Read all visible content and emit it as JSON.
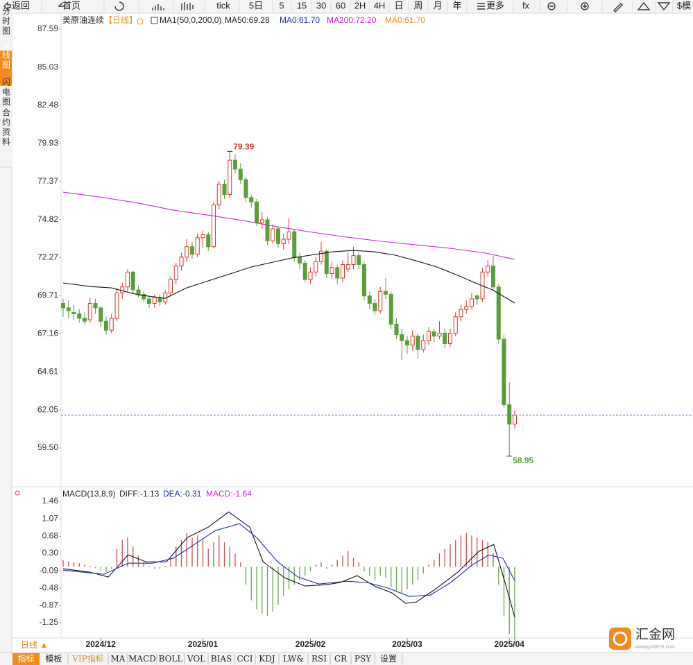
{
  "toolbar": [
    "返回",
    "首页",
    "tick",
    "5日",
    "5",
    "15",
    "30",
    "60",
    "2H",
    "4H",
    "日",
    "周",
    "月",
    "年",
    "更多",
    "fx",
    "$模"
  ],
  "side_tabs": [
    "分时图",
    "K线图",
    "闪电图",
    "合约资料"
  ],
  "period_label": "日线 ▲",
  "bottom_tabs": [
    "指标",
    "模板",
    "VIP指标",
    "MA",
    "MACD",
    "BOLL",
    "VOL",
    "BIAS",
    "CCI",
    "KDJ",
    "LW&",
    "RSI",
    "CR",
    "PSY",
    "设置"
  ],
  "logo": {
    "name": "汇金网",
    "url": "www.gold678.com"
  },
  "chart_data": [
    {
      "type": "candlestick",
      "legend": [
        {
          "text": "美原油连续",
          "color": "#222222"
        },
        {
          "text": "【日线】",
          "color": "#e8891a"
        },
        {
          "text": "MA1(50,0,200,0)",
          "color": "#222222"
        },
        {
          "text": "MA50:69.28",
          "color": "#222222"
        },
        {
          "text": "MA0:61.70",
          "color": "#1b2fa0"
        },
        {
          "text": "MA200:72.20",
          "color": "#d020d0"
        },
        {
          "text": "MA0:61.70",
          "color": "#f08c1a"
        }
      ],
      "ylim": [
        56.99,
        88.15
      ],
      "yticks": [
        87.59,
        85.03,
        82.48,
        79.93,
        77.37,
        74.82,
        72.27,
        69.71,
        67.16,
        64.61,
        62.05,
        {
          "value": 59.5,
          "label": "59.50"
        }
      ],
      "grid": false,
      "xlabels": [
        {
          "x": 7,
          "label": "2024/12"
        },
        {
          "x": 26,
          "label": "2025/01"
        },
        {
          "x": 46,
          "label": "2025/02"
        },
        {
          "x": 64,
          "label": "2025/03"
        },
        {
          "x": 83,
          "label": "2025/04"
        }
      ],
      "up_color": "#d9342b",
      "down_color": "#5a9e3a",
      "ohlc": [
        [
          69.2,
          69.5,
          68.3,
          68.9
        ],
        [
          68.9,
          69.4,
          68.2,
          68.7
        ],
        [
          68.6,
          69.1,
          68.1,
          68.5
        ],
        [
          68.5,
          68.8,
          67.9,
          68.2
        ],
        [
          68.2,
          68.6,
          67.8,
          68.0
        ],
        [
          68.1,
          69.6,
          67.9,
          69.2
        ],
        [
          69.2,
          69.5,
          68.5,
          68.9
        ],
        [
          68.9,
          69.0,
          67.6,
          68.0
        ],
        [
          68.0,
          68.3,
          67.1,
          67.4
        ],
        [
          67.4,
          68.5,
          67.2,
          68.2
        ],
        [
          68.2,
          70.2,
          68.0,
          69.9
        ],
        [
          69.9,
          70.6,
          69.5,
          70.3
        ],
        [
          70.3,
          71.5,
          70.0,
          71.3
        ],
        [
          71.3,
          71.4,
          69.9,
          70.1
        ],
        [
          70.1,
          70.4,
          69.6,
          69.8
        ],
        [
          69.8,
          70.0,
          69.3,
          69.5
        ],
        [
          69.5,
          69.7,
          68.9,
          69.2
        ],
        [
          69.2,
          69.8,
          68.9,
          69.6
        ],
        [
          69.6,
          69.8,
          69.0,
          69.3
        ],
        [
          69.3,
          70.1,
          69.1,
          69.9
        ],
        [
          69.9,
          71.0,
          69.7,
          70.8
        ],
        [
          70.8,
          71.9,
          70.5,
          71.7
        ],
        [
          71.7,
          72.6,
          71.4,
          72.3
        ],
        [
          72.3,
          73.5,
          72.0,
          73.0
        ],
        [
          73.0,
          73.3,
          72.2,
          72.5
        ],
        [
          72.5,
          73.9,
          72.3,
          73.6
        ],
        [
          73.6,
          74.1,
          72.9,
          73.8
        ],
        [
          73.8,
          74.0,
          72.7,
          73.0
        ],
        [
          73.0,
          76.0,
          72.9,
          75.8
        ],
        [
          75.8,
          77.4,
          75.5,
          77.2
        ],
        [
          77.2,
          77.5,
          76.2,
          76.5
        ],
        [
          76.5,
          79.39,
          76.3,
          78.8
        ],
        [
          78.8,
          79.2,
          77.9,
          78.2
        ],
        [
          78.2,
          78.6,
          77.2,
          77.5
        ],
        [
          77.5,
          77.7,
          76.0,
          76.3
        ],
        [
          76.3,
          76.5,
          75.6,
          76.0
        ],
        [
          76.0,
          76.2,
          74.4,
          74.6
        ],
        [
          74.6,
          75.3,
          74.2,
          74.8
        ],
        [
          74.8,
          75.0,
          73.1,
          73.4
        ],
        [
          73.4,
          74.5,
          73.2,
          74.2
        ],
        [
          74.2,
          74.3,
          72.9,
          73.2
        ],
        [
          73.2,
          73.9,
          72.8,
          73.5
        ],
        [
          73.5,
          74.9,
          73.2,
          74.0
        ],
        [
          74.0,
          74.2,
          72.0,
          72.3
        ],
        [
          72.3,
          72.6,
          71.5,
          71.9
        ],
        [
          71.9,
          72.1,
          70.6,
          70.8
        ],
        [
          70.8,
          71.6,
          70.5,
          71.3
        ],
        [
          71.3,
          72.3,
          71.0,
          72.0
        ],
        [
          72.0,
          73.3,
          71.8,
          72.7
        ],
        [
          72.7,
          72.8,
          70.9,
          71.2
        ],
        [
          71.2,
          72.0,
          70.8,
          71.6
        ],
        [
          71.6,
          71.8,
          70.5,
          70.9
        ],
        [
          70.9,
          72.1,
          70.6,
          71.8
        ],
        [
          71.5,
          72.6,
          71.3,
          71.8
        ],
        [
          71.8,
          73.0,
          71.5,
          72.4
        ],
        [
          72.4,
          72.6,
          71.5,
          71.8
        ],
        [
          71.8,
          72.0,
          69.4,
          69.7
        ],
        [
          69.7,
          70.0,
          68.8,
          69.2
        ],
        [
          69.2,
          69.5,
          68.4,
          68.7
        ],
        [
          68.7,
          70.3,
          68.5,
          70.0
        ],
        [
          70.0,
          70.9,
          69.5,
          69.8
        ],
        [
          69.8,
          70.0,
          67.5,
          67.8
        ],
        [
          67.8,
          68.2,
          66.8,
          67.1
        ],
        [
          67.1,
          67.5,
          65.4,
          66.7
        ],
        [
          66.7,
          67.0,
          65.8,
          66.4
        ],
        [
          66.4,
          67.4,
          66.0,
          67.0
        ],
        [
          67.0,
          67.2,
          65.5,
          66.1
        ],
        [
          66.1,
          67.1,
          65.9,
          66.7
        ],
        [
          66.7,
          67.6,
          66.4,
          67.3
        ],
        [
          67.3,
          67.5,
          66.6,
          67.0
        ],
        [
          67.0,
          68.0,
          66.8,
          67.2
        ],
        [
          67.2,
          67.5,
          66.2,
          66.5
        ],
        [
          66.5,
          67.5,
          66.3,
          67.2
        ],
        [
          67.2,
          68.6,
          67.0,
          68.3
        ],
        [
          68.3,
          69.1,
          68.0,
          68.8
        ],
        [
          68.8,
          69.4,
          68.5,
          69.0
        ],
        [
          69.0,
          69.9,
          68.8,
          69.5
        ],
        [
          69.7,
          69.8,
          69.1,
          69.5
        ],
        [
          69.5,
          71.6,
          69.3,
          71.3
        ],
        [
          71.3,
          72.1,
          71.0,
          71.7
        ],
        [
          71.7,
          72.4,
          70.1,
          70.3
        ],
        [
          70.3,
          70.5,
          66.5,
          66.8
        ],
        [
          66.8,
          67.1,
          62.2,
          62.4
        ],
        [
          62.4,
          63.9,
          58.95,
          61.1
        ],
        [
          61.1,
          62.0,
          60.8,
          61.7
        ]
      ],
      "lines": [
        {
          "color": "#111111",
          "x": [
            0,
            5,
            8.9,
            14,
            19,
            23,
            27,
            31,
            35,
            39,
            42.5,
            46,
            50.2,
            54,
            57.9,
            61.8,
            65.7,
            69.5,
            73.4,
            77.3,
            79.9,
            84
          ],
          "values": [
            70.57,
            70.33,
            70.24,
            69.77,
            69.54,
            70.24,
            70.71,
            71.17,
            71.64,
            71.96,
            72.24,
            72.43,
            72.66,
            72.75,
            72.66,
            72.43,
            72.05,
            71.64,
            71.08,
            70.47,
            70.1,
            69.22
          ]
        },
        {
          "color": "#d020d0",
          "x": [
            0,
            7.6,
            14,
            20.5,
            27,
            33.5,
            40,
            46.5,
            52.8,
            59.2,
            65.7,
            72.1,
            78.6,
            84
          ],
          "values": [
            76.66,
            76.29,
            75.92,
            75.45,
            75.12,
            74.75,
            74.33,
            73.96,
            73.64,
            73.36,
            73.12,
            72.89,
            72.57,
            72.15
          ]
        }
      ],
      "last": 61.7,
      "last_color": "#3a6fd8",
      "annotations": [
        {
          "x": 31,
          "value": 79.39,
          "color": "#d9342b"
        },
        {
          "x": 83,
          "value": 58.95,
          "color": "#5a9e3a"
        }
      ]
    },
    {
      "type": "macd",
      "legend": [
        {
          "text": "MACD(13,8,9)",
          "color": "#222222"
        },
        {
          "text": "DIFF:-1.13",
          "color": "#222222"
        },
        {
          "text": "DEA:-0.31",
          "color": "#1b2fa0"
        },
        {
          "text": "MACD:-1.64",
          "color": "#d020d0"
        }
      ],
      "ylim": [
        -1.59,
        1.74
      ],
      "yticks": [
        1.46,
        1.07,
        0.68,
        {
          "value": 0.3,
          "label": "0.30"
        },
        -0.09,
        -0.48,
        -0.87,
        -1.25
      ],
      "up_color": "#c0504d",
      "down_color": "#6aa84f",
      "histogram": [
        0.15,
        0.12,
        0.1,
        0.08,
        0.05,
        0.02,
        -0.03,
        -0.08,
        -0.12,
        -0.05,
        0.4,
        0.6,
        0.65,
        0.45,
        0.25,
        0.1,
        0.02,
        -0.05,
        -0.05,
        0.02,
        0.2,
        0.45,
        0.6,
        0.75,
        0.65,
        0.7,
        0.6,
        0.4,
        0.55,
        0.7,
        0.55,
        0.45,
        0.3,
        0.1,
        -0.4,
        -0.75,
        -0.95,
        -1.05,
        -1.1,
        -1.0,
        -0.85,
        -0.65,
        -0.5,
        -0.4,
        -0.3,
        -0.2,
        -0.1,
        0.05,
        0.1,
        -0.05,
        0.05,
        0.15,
        0.25,
        0.35,
        0.2,
        0.1,
        -0.1,
        -0.2,
        -0.3,
        -0.2,
        -0.25,
        -0.45,
        -0.55,
        -0.6,
        -0.5,
        -0.4,
        -0.3,
        -0.15,
        0.05,
        0.15,
        0.3,
        0.4,
        0.5,
        0.6,
        0.7,
        0.75,
        0.7,
        0.65,
        0.6,
        0.55,
        0.3,
        -0.4,
        -1.1,
        -1.5,
        -1.64
      ],
      "lines": [
        {
          "color": "#111111",
          "x": [
            0,
            5,
            8.4,
            12.1,
            15.4,
            19.2,
            23.1,
            27,
            30.8,
            34.7,
            37.2,
            41.2,
            45,
            48.9,
            51.5,
            54.7,
            57.9,
            61.2,
            63.7,
            65.7,
            69.5,
            73.4,
            77.3,
            80.1,
            82.2,
            84
          ],
          "values": [
            -0.044,
            -0.121,
            -0.23,
            0.266,
            0.11,
            0.11,
            0.653,
            0.885,
            1.226,
            0.885,
            0.11,
            -0.245,
            -0.43,
            -0.4,
            -0.353,
            -0.198,
            -0.43,
            -0.585,
            -0.817,
            -0.787,
            -0.477,
            -0.121,
            0.343,
            0.498,
            -0.353,
            -1.127
          ]
        },
        {
          "color": "#1b2fa0",
          "x": [
            0,
            7.6,
            12.1,
            16.6,
            20.5,
            24.4,
            28.3,
            32.8,
            36,
            39.9,
            43.7,
            47.6,
            52.8,
            56.6,
            60.5,
            64.4,
            68.3,
            72.1,
            76,
            79.2,
            81.8,
            84
          ],
          "values": [
            -0.075,
            -0.167,
            0.08,
            0.08,
            0.189,
            0.498,
            0.808,
            0.963,
            0.653,
            0.11,
            -0.229,
            -0.384,
            -0.322,
            -0.353,
            -0.477,
            -0.663,
            -0.632,
            -0.353,
            0.034,
            0.266,
            0.189,
            -0.31
          ]
        }
      ]
    }
  ]
}
